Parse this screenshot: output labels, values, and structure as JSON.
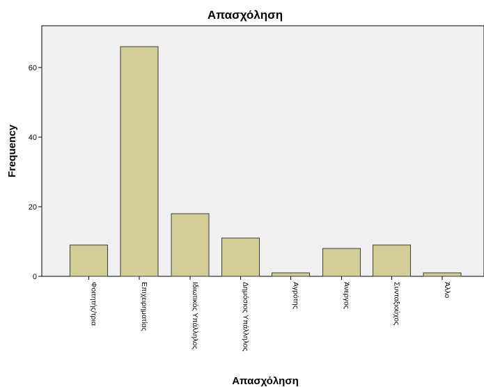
{
  "chart_data": {
    "type": "bar",
    "title": "Απασχόληση",
    "xlabel": "Απασχόληση",
    "ylabel": "Frequency",
    "categories": [
      "Φοιτητής/τρια",
      "Επιχειρηματίας",
      "Ιδιωτικός Υπάλληλος",
      "Δημόσιος Υπάλληλος",
      "Αγρότης",
      "Άνεργος",
      "Συνταξιούχος",
      "Άλλο"
    ],
    "values": [
      9,
      66,
      18,
      11,
      1,
      8,
      9,
      1
    ],
    "ylim": [
      0,
      72
    ],
    "yticks": [
      0,
      20,
      40,
      60
    ],
    "grid": false,
    "colors": {
      "plot_background": "#f0f0f0",
      "bar_fill": "#d3ce97",
      "bar_stroke": "#3b3b3b",
      "axis": "#000000"
    }
  }
}
